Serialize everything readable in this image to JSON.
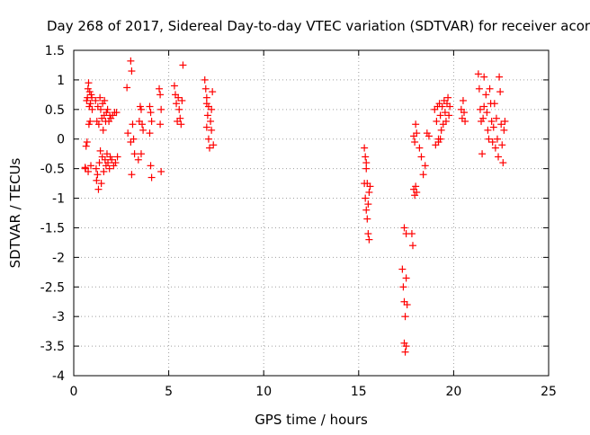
{
  "chart_data": {
    "type": "scatter",
    "title": "Day 268 of 2017, Sidereal Day-to-day VTEC variation (SDTVAR) for receiver acor",
    "xlabel": "GPS time / hours",
    "ylabel": "SDTVAR / TECUs",
    "xlim": [
      0,
      25
    ],
    "ylim": [
      -4,
      1.5
    ],
    "xticks": [
      0,
      5,
      10,
      15,
      20,
      25
    ],
    "xtick_labels": [
      "0",
      "5",
      "10",
      "15",
      "20",
      "25"
    ],
    "yticks": [
      -4,
      -3.5,
      -3,
      -2.5,
      -2,
      -1.5,
      -1,
      -0.5,
      0,
      0.5,
      1,
      1.5
    ],
    "ytick_labels": [
      "-4",
      "-3.5",
      "-3",
      "-2.5",
      "-2",
      "-1.5",
      "-1",
      "-0.5",
      "0",
      "0.5",
      "1",
      "1.5"
    ],
    "grid": true,
    "marker": "+",
    "series": [
      {
        "name": "SDTVAR",
        "color": "#ff0000",
        "points": [
          [
            0.6,
            -0.48
          ],
          [
            0.62,
            -0.5
          ],
          [
            0.65,
            -0.12
          ],
          [
            0.68,
            0.65
          ],
          [
            0.7,
            -0.05
          ],
          [
            0.72,
            0.7
          ],
          [
            0.75,
            0.85
          ],
          [
            0.76,
            -0.55
          ],
          [
            0.78,
            0.95
          ],
          [
            0.8,
            0.25
          ],
          [
            0.82,
            0.55
          ],
          [
            0.84,
            0.8
          ],
          [
            0.86,
            0.3
          ],
          [
            0.88,
            0.6
          ],
          [
            0.9,
            -0.45
          ],
          [
            0.92,
            0.75
          ],
          [
            0.95,
            0.7
          ],
          [
            0.97,
            0.5
          ],
          [
            1.15,
            0.65
          ],
          [
            1.18,
            -0.5
          ],
          [
            1.2,
            -0.7
          ],
          [
            1.22,
            0.3
          ],
          [
            1.25,
            -0.6
          ],
          [
            1.27,
            0.55
          ],
          [
            1.3,
            -0.85
          ],
          [
            1.32,
            0.25
          ],
          [
            1.35,
            -0.4
          ],
          [
            1.38,
            0.7
          ],
          [
            1.4,
            -0.2
          ],
          [
            1.42,
            0.5
          ],
          [
            1.45,
            -0.75
          ],
          [
            1.48,
            0.35
          ],
          [
            1.5,
            -0.3
          ],
          [
            1.52,
            0.6
          ],
          [
            1.55,
            0.15
          ],
          [
            1.58,
            -0.55
          ],
          [
            1.6,
            0.4
          ],
          [
            1.62,
            0.65
          ],
          [
            1.65,
            -0.35
          ],
          [
            1.68,
            0.3
          ],
          [
            1.7,
            -0.45
          ],
          [
            1.72,
            0.45
          ],
          [
            1.75,
            -0.25
          ],
          [
            1.78,
            0.5
          ],
          [
            1.8,
            -0.4
          ],
          [
            1.85,
            0.3
          ],
          [
            1.88,
            -0.5
          ],
          [
            1.9,
            0.4
          ],
          [
            1.92,
            -0.3
          ],
          [
            1.95,
            0.35
          ],
          [
            2.0,
            -0.35
          ],
          [
            2.05,
            0.4
          ],
          [
            2.1,
            -0.45
          ],
          [
            2.15,
            0.45
          ],
          [
            2.2,
            -0.4
          ],
          [
            2.25,
            0.45
          ],
          [
            2.3,
            -0.3
          ],
          [
            2.8,
            0.87
          ],
          [
            2.85,
            0.1
          ],
          [
            3.0,
            1.32
          ],
          [
            3.05,
            1.15
          ],
          [
            3.1,
            0.25
          ],
          [
            3.15,
            0.0
          ],
          [
            3.2,
            -0.25
          ],
          [
            3.0,
            -0.05
          ],
          [
            3.05,
            -0.6
          ],
          [
            3.4,
            -0.35
          ],
          [
            3.45,
            0.3
          ],
          [
            3.5,
            0.55
          ],
          [
            3.55,
            0.5
          ],
          [
            3.6,
            0.25
          ],
          [
            3.65,
            0.15
          ],
          [
            3.55,
            -0.25
          ],
          [
            4.0,
            0.55
          ],
          [
            4.05,
            0.45
          ],
          [
            4.1,
            0.3
          ],
          [
            4.0,
            0.1
          ],
          [
            4.05,
            -0.45
          ],
          [
            4.1,
            -0.65
          ],
          [
            4.5,
            0.85
          ],
          [
            4.55,
            0.75
          ],
          [
            4.6,
            0.5
          ],
          [
            4.55,
            0.25
          ],
          [
            4.6,
            -0.55
          ],
          [
            5.3,
            0.9
          ],
          [
            5.35,
            0.75
          ],
          [
            5.4,
            0.6
          ],
          [
            5.45,
            0.3
          ],
          [
            5.5,
            0.7
          ],
          [
            5.55,
            0.5
          ],
          [
            5.6,
            0.35
          ],
          [
            5.65,
            0.25
          ],
          [
            5.7,
            0.65
          ],
          [
            5.75,
            1.25
          ],
          [
            6.9,
            1.0
          ],
          [
            6.95,
            0.85
          ],
          [
            7.0,
            0.6
          ],
          [
            7.05,
            0.4
          ],
          [
            7.0,
            0.2
          ],
          [
            7.1,
            0.0
          ],
          [
            7.15,
            -0.15
          ],
          [
            7.1,
            0.55
          ],
          [
            7.2,
            0.3
          ],
          [
            7.25,
            0.5
          ],
          [
            7.3,
            0.8
          ],
          [
            7.35,
            -0.1
          ],
          [
            7.0,
            0.7
          ],
          [
            7.25,
            0.15
          ],
          [
            15.3,
            -0.15
          ],
          [
            15.35,
            -0.3
          ],
          [
            15.4,
            -0.5
          ],
          [
            15.45,
            -0.75
          ],
          [
            15.3,
            -0.75
          ],
          [
            15.35,
            -1.0
          ],
          [
            15.4,
            -1.2
          ],
          [
            15.45,
            -1.35
          ],
          [
            15.5,
            -1.1
          ],
          [
            15.55,
            -0.9
          ],
          [
            15.6,
            -0.8
          ],
          [
            15.5,
            -1.6
          ],
          [
            15.55,
            -1.7
          ],
          [
            15.4,
            -0.4
          ],
          [
            17.3,
            -2.2
          ],
          [
            17.35,
            -2.5
          ],
          [
            17.4,
            -2.75
          ],
          [
            17.45,
            -3.0
          ],
          [
            17.5,
            -2.35
          ],
          [
            17.55,
            -2.8
          ],
          [
            17.4,
            -3.45
          ],
          [
            17.45,
            -3.6
          ],
          [
            17.5,
            -3.5
          ],
          [
            17.4,
            -1.5
          ],
          [
            17.5,
            -1.6
          ],
          [
            17.8,
            -1.6
          ],
          [
            17.85,
            -1.8
          ],
          [
            17.9,
            -0.85
          ],
          [
            17.95,
            -0.95
          ],
          [
            18.0,
            -0.8
          ],
          [
            18.05,
            -0.9
          ],
          [
            17.9,
            0.05
          ],
          [
            17.95,
            -0.05
          ],
          [
            18.0,
            0.25
          ],
          [
            18.05,
            0.1
          ],
          [
            18.2,
            -0.15
          ],
          [
            18.3,
            -0.3
          ],
          [
            18.4,
            -0.6
          ],
          [
            18.5,
            -0.45
          ],
          [
            18.6,
            0.1
          ],
          [
            18.7,
            0.05
          ],
          [
            19.0,
            0.5
          ],
          [
            19.05,
            -0.1
          ],
          [
            19.1,
            0.3
          ],
          [
            19.15,
            0.55
          ],
          [
            19.2,
            0.0
          ],
          [
            19.25,
            0.6
          ],
          [
            19.3,
            0.4
          ],
          [
            19.35,
            0.15
          ],
          [
            19.4,
            0.55
          ],
          [
            19.45,
            0.25
          ],
          [
            19.5,
            0.65
          ],
          [
            19.55,
            0.45
          ],
          [
            19.6,
            0.3
          ],
          [
            19.65,
            0.6
          ],
          [
            19.7,
            0.7
          ],
          [
            19.75,
            0.4
          ],
          [
            19.8,
            0.55
          ],
          [
            19.2,
            -0.05
          ],
          [
            19.3,
            0.0
          ],
          [
            20.4,
            0.5
          ],
          [
            20.45,
            0.35
          ],
          [
            20.5,
            0.65
          ],
          [
            20.55,
            0.45
          ],
          [
            20.6,
            0.3
          ],
          [
            21.3,
            1.1
          ],
          [
            21.35,
            0.85
          ],
          [
            21.4,
            0.5
          ],
          [
            21.45,
            0.3
          ],
          [
            21.5,
            -0.25
          ],
          [
            21.55,
            0.35
          ],
          [
            21.6,
            0.55
          ],
          [
            21.7,
            0.75
          ],
          [
            21.75,
            0.45
          ],
          [
            21.8,
            0.15
          ],
          [
            21.85,
            0.0
          ],
          [
            21.9,
            0.85
          ],
          [
            21.95,
            0.6
          ],
          [
            22.0,
            0.3
          ],
          [
            22.05,
            -0.05
          ],
          [
            22.1,
            0.2
          ],
          [
            22.15,
            0.6
          ],
          [
            22.2,
            -0.15
          ],
          [
            22.25,
            0.35
          ],
          [
            22.3,
            0.0
          ],
          [
            22.35,
            -0.3
          ],
          [
            22.4,
            1.05
          ],
          [
            22.45,
            0.8
          ],
          [
            22.5,
            0.25
          ],
          [
            22.55,
            -0.1
          ],
          [
            22.6,
            -0.4
          ],
          [
            22.65,
            0.15
          ],
          [
            22.7,
            0.3
          ],
          [
            21.6,
            1.05
          ]
        ]
      }
    ]
  }
}
